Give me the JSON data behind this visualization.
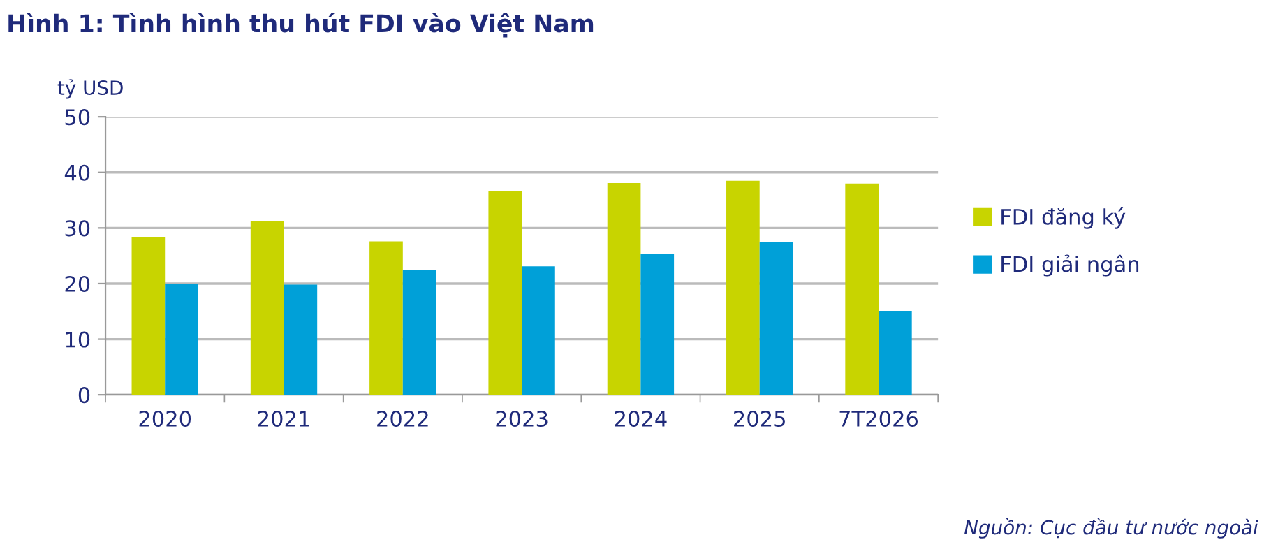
{
  "chart_data": {
    "type": "bar",
    "title": "Hình 1: Tình hình thu hút FDI vào Việt Nam",
    "ylabel": "tỷ USD",
    "categories": [
      "2020",
      "2021",
      "2022",
      "2023",
      "2024",
      "2025",
      "7T2026"
    ],
    "series": [
      {
        "name": "FDI đăng ký",
        "color": "#c8d400",
        "values": [
          28.4,
          31.2,
          27.6,
          36.6,
          38.1,
          38.5,
          38.0
        ]
      },
      {
        "name": "FDI giải ngân",
        "color": "#00a0d8",
        "values": [
          20.0,
          19.8,
          22.4,
          23.1,
          25.3,
          27.5,
          15.1
        ]
      }
    ],
    "ylim": [
      0,
      50
    ],
    "yticks": [
      0,
      10,
      20,
      30,
      40,
      50
    ],
    "grid": "y",
    "legend": "right",
    "annotations": [
      "Nguồn: Cục đầu tư nước ngoài"
    ]
  }
}
